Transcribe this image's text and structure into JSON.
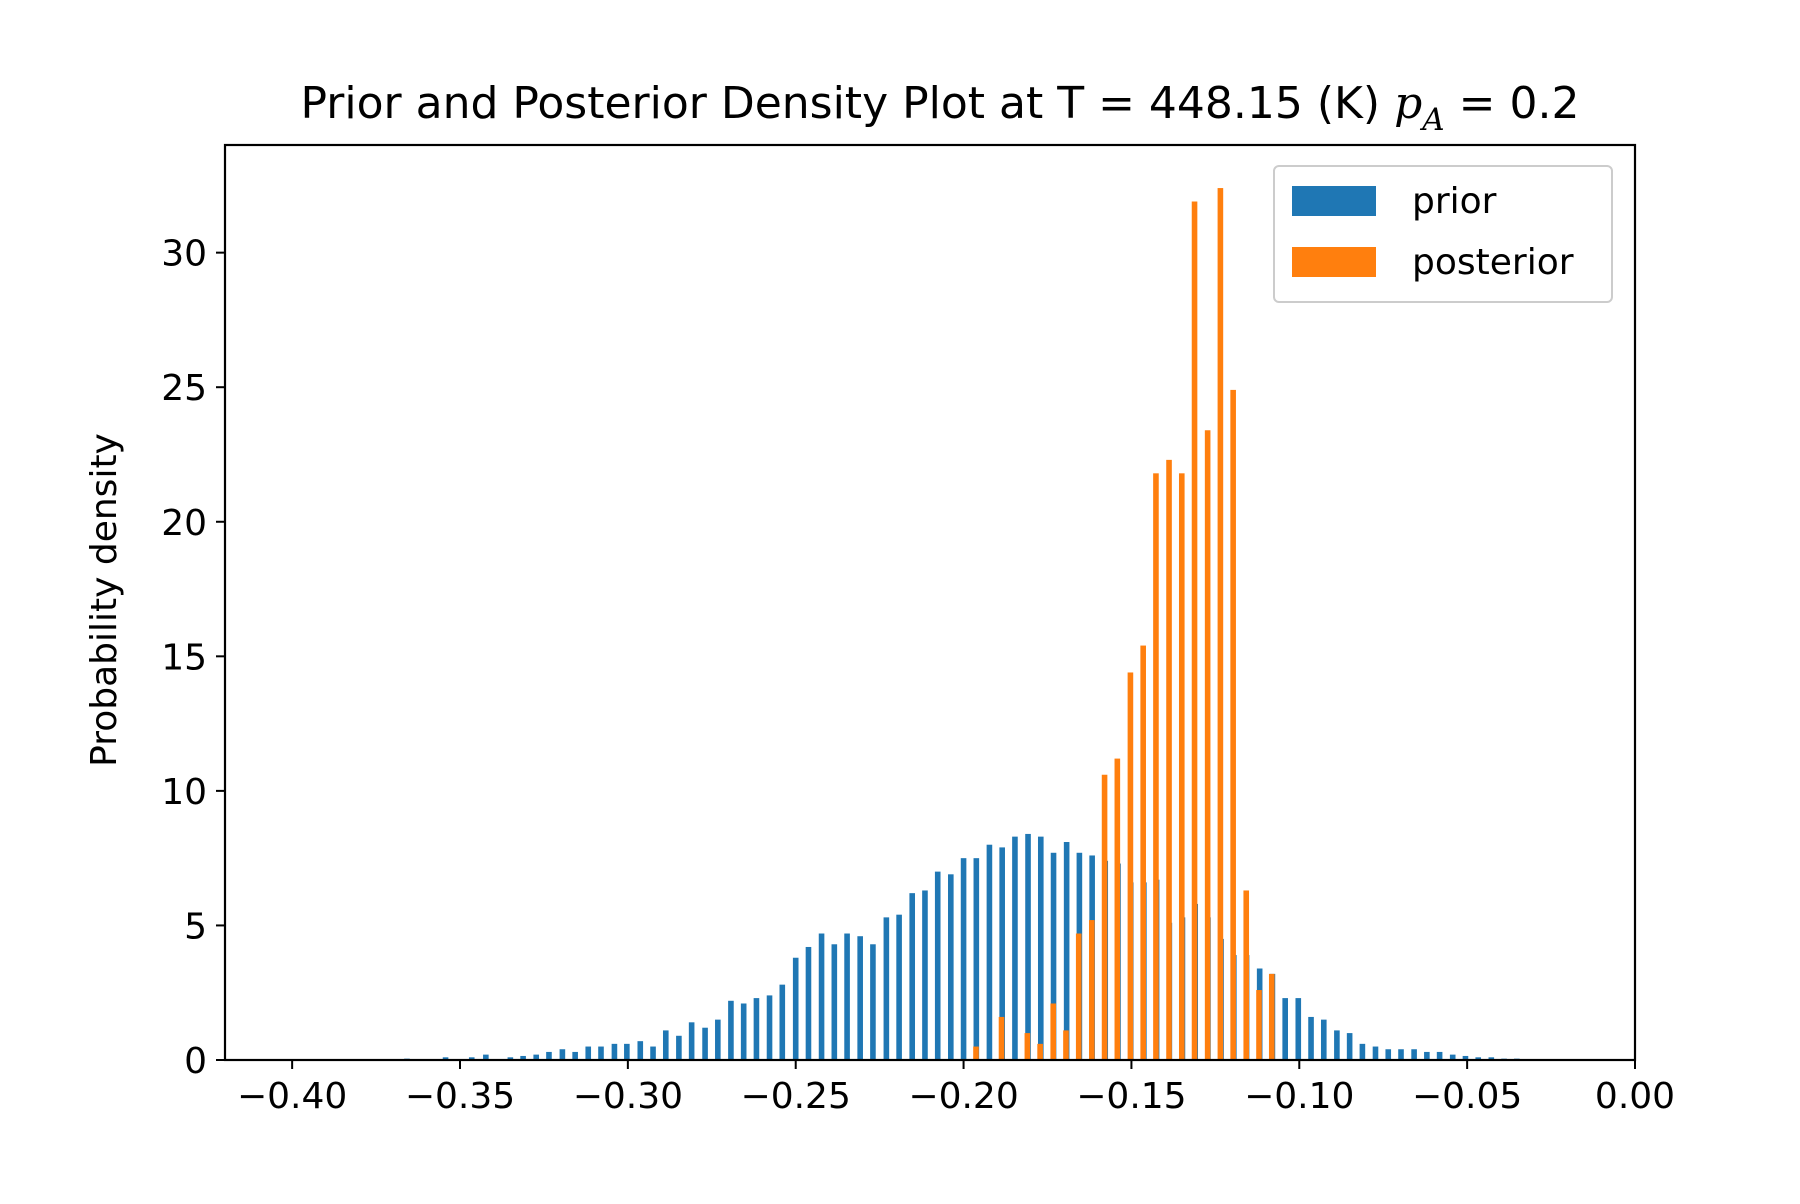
{
  "chart_data": {
    "type": "bar",
    "title": "Prior and Posterior Density Plot at T = 448.15 (K)",
    "title_math": {
      "var": "p",
      "sub": "A",
      "value": "= 0.2"
    },
    "xlabel": "",
    "ylabel": "Probability density",
    "xlim": [
      -0.42,
      0.0
    ],
    "ylim": [
      0,
      34
    ],
    "xticks": [
      -0.4,
      -0.35,
      -0.3,
      -0.25,
      -0.2,
      -0.15,
      -0.1,
      -0.05,
      0.0
    ],
    "xtick_labels": [
      "−0.40",
      "−0.35",
      "−0.30",
      "−0.25",
      "−0.20",
      "−0.15",
      "−0.10",
      "−0.05",
      "0.00"
    ],
    "yticks": [
      0,
      5,
      10,
      15,
      20,
      25,
      30
    ],
    "ytick_labels": [
      "0",
      "5",
      "10",
      "15",
      "20",
      "25",
      "30"
    ],
    "grid": false,
    "legend_position": "top-right",
    "series": [
      {
        "name": "prior",
        "color": "#1f77b4",
        "x": [
          -0.3658,
          -0.3543,
          -0.3465,
          -0.3423,
          -0.335,
          -0.3312,
          -0.3273,
          -0.3235,
          -0.3195,
          -0.3157,
          -0.3118,
          -0.308,
          -0.304,
          -0.3003,
          -0.2963,
          -0.2925,
          -0.2887,
          -0.2848,
          -0.281,
          -0.277,
          -0.2732,
          -0.2693,
          -0.2655,
          -0.2617,
          -0.2578,
          -0.254,
          -0.25,
          -0.2462,
          -0.2423,
          -0.2385,
          -0.2347,
          -0.2308,
          -0.227,
          -0.223,
          -0.2192,
          -0.2153,
          -0.2115,
          -0.2077,
          -0.2038,
          -0.2,
          -0.1962,
          -0.1923,
          -0.1885,
          -0.1847,
          -0.1808,
          -0.177,
          -0.1732,
          -0.1693,
          -0.1655,
          -0.1617,
          -0.1578,
          -0.154,
          -0.1502,
          -0.1463,
          -0.1425,
          -0.1387,
          -0.1348,
          -0.131,
          -0.1272,
          -0.1233,
          -0.1195,
          -0.1157,
          -0.1118,
          -0.108,
          -0.1042,
          -0.1003,
          -0.0965,
          -0.0927,
          -0.0888,
          -0.085,
          -0.0812,
          -0.0773,
          -0.0735,
          -0.0697,
          -0.0658,
          -0.062,
          -0.0582,
          -0.0543,
          -0.0505,
          -0.0467,
          -0.0428,
          -0.039,
          -0.0352
        ],
        "values": [
          0.05,
          0.1,
          0.1,
          0.2,
          0.1,
          0.15,
          0.2,
          0.3,
          0.4,
          0.3,
          0.5,
          0.5,
          0.6,
          0.6,
          0.7,
          0.5,
          1.1,
          0.9,
          1.4,
          1.2,
          1.5,
          2.2,
          2.1,
          2.3,
          2.4,
          2.8,
          3.8,
          4.2,
          4.7,
          4.3,
          4.7,
          4.6,
          4.3,
          5.3,
          5.4,
          6.2,
          6.3,
          7.0,
          6.9,
          7.5,
          7.5,
          8.0,
          7.9,
          8.3,
          8.4,
          8.3,
          7.7,
          8.1,
          7.7,
          7.6,
          7.4,
          7.3,
          6.6,
          6.6,
          6.7,
          5.1,
          5.3,
          5.8,
          5.3,
          4.5,
          3.9,
          3.9,
          3.4,
          3.2,
          2.3,
          2.3,
          1.6,
          1.5,
          1.1,
          1.0,
          0.6,
          0.5,
          0.4,
          0.4,
          0.4,
          0.3,
          0.3,
          0.2,
          0.15,
          0.1,
          0.1,
          0.05,
          0.05
        ]
      },
      {
        "name": "posterior",
        "color": "#ff7f0e",
        "x": [
          -0.1963,
          -0.1887,
          -0.181,
          -0.1772,
          -0.1733,
          -0.1695,
          -0.1657,
          -0.1618,
          -0.158,
          -0.1542,
          -0.1503,
          -0.1465,
          -0.1427,
          -0.1388,
          -0.135,
          -0.1312,
          -0.1273,
          -0.1235,
          -0.1197,
          -0.1158,
          -0.112,
          -0.1082
        ],
        "values": [
          0.5,
          1.6,
          1.0,
          0.6,
          2.1,
          1.1,
          4.7,
          5.2,
          10.6,
          11.2,
          14.4,
          15.4,
          21.8,
          22.3,
          21.8,
          31.9,
          23.4,
          32.4,
          24.9,
          6.3,
          2.6,
          3.2
        ]
      }
    ]
  }
}
